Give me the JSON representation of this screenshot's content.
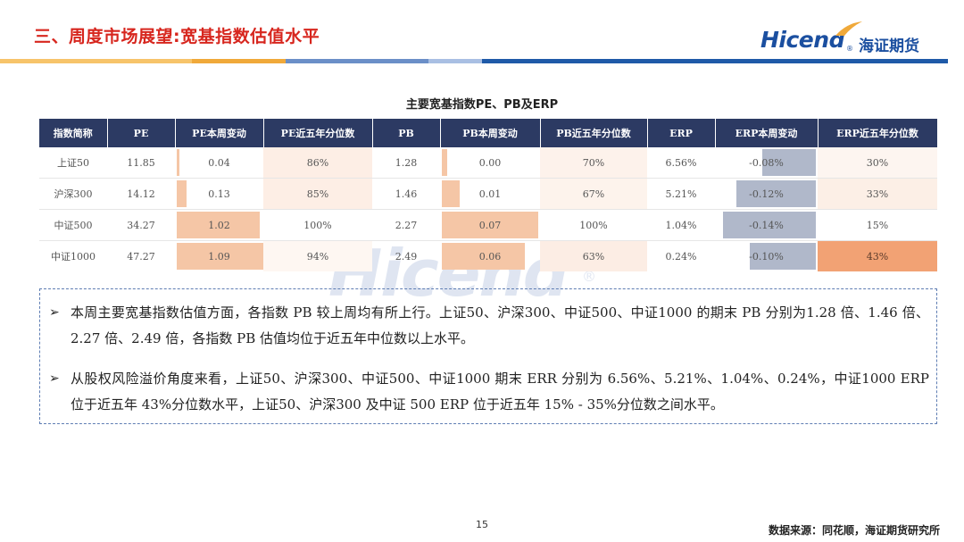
{
  "header": {
    "title": "三、周度市场展望:宽基指数估值水平",
    "logo_text": "Hicend",
    "logo_reg": "®",
    "logo_cn": "海证期货",
    "colors": {
      "title": "#d7261e",
      "brand": "#1b4fa0",
      "bar_orange": "#f0a93a",
      "bar_blue": "#1f5aa8"
    }
  },
  "table": {
    "title": "主要宽基指数PE、PB及ERP",
    "headers": [
      "指数简称",
      "PE",
      "PE本周变动",
      "PE近五年分位数",
      "PB",
      "PB本周变动",
      "PB近五年分位数",
      "ERP",
      "ERP本周变动",
      "ERP近五年分位数"
    ],
    "rows": [
      {
        "name": "上证50",
        "pe": "11.85",
        "pe_chg": "0.04",
        "pe_pct": "86%",
        "pb": "1.28",
        "pb_chg": "0.00",
        "pb_pct": "70%",
        "erp": "6.56%",
        "erp_chg": "-0.08%",
        "erp_pct": "30%"
      },
      {
        "name": "沪深300",
        "pe": "14.12",
        "pe_chg": "0.13",
        "pe_pct": "85%",
        "pb": "1.46",
        "pb_chg": "0.01",
        "pb_pct": "67%",
        "erp": "5.21%",
        "erp_chg": "-0.12%",
        "erp_pct": "33%"
      },
      {
        "name": "中证500",
        "pe": "34.27",
        "pe_chg": "1.02",
        "pe_pct": "100%",
        "pb": "2.27",
        "pb_chg": "0.07",
        "pb_pct": "100%",
        "erp": "1.04%",
        "erp_chg": "-0.14%",
        "erp_pct": "15%"
      },
      {
        "name": "中证1000",
        "pe": "47.27",
        "pe_chg": "1.09",
        "pe_pct": "94%",
        "pb": "2.49",
        "pb_chg": "0.06",
        "pb_pct": "63%",
        "erp": "0.24%",
        "erp_chg": "-0.10%",
        "erp_pct": "43%"
      }
    ]
  },
  "watermark": {
    "text": "Hicend",
    "reg": "®"
  },
  "bullets": [
    "本周主要宽基指数估值方面，各指数 PB 较上周均有所上行。上证50、沪深300、中证500、中证1000 的期末 PB 分别为1.28 倍、1.46 倍、2.27 倍、2.49 倍，各指数 PB 估值均位于近五年中位数以上水平。",
    "从股权风险溢价角度来看，上证50、沪深300、中证500、中证1000 期末 ERR 分别为 6.56%、5.21%、1.04%、0.24%，中证1000 ERP 位于近五年 43%分位数水平，上证50、沪深300 及中证 500 ERP 位于近五年 15% - 35%分位数之间水平。"
  ],
  "bullet_marker": "➢",
  "footer": {
    "page": "15",
    "source": "数据来源：同花顺，海证期货研究所"
  }
}
